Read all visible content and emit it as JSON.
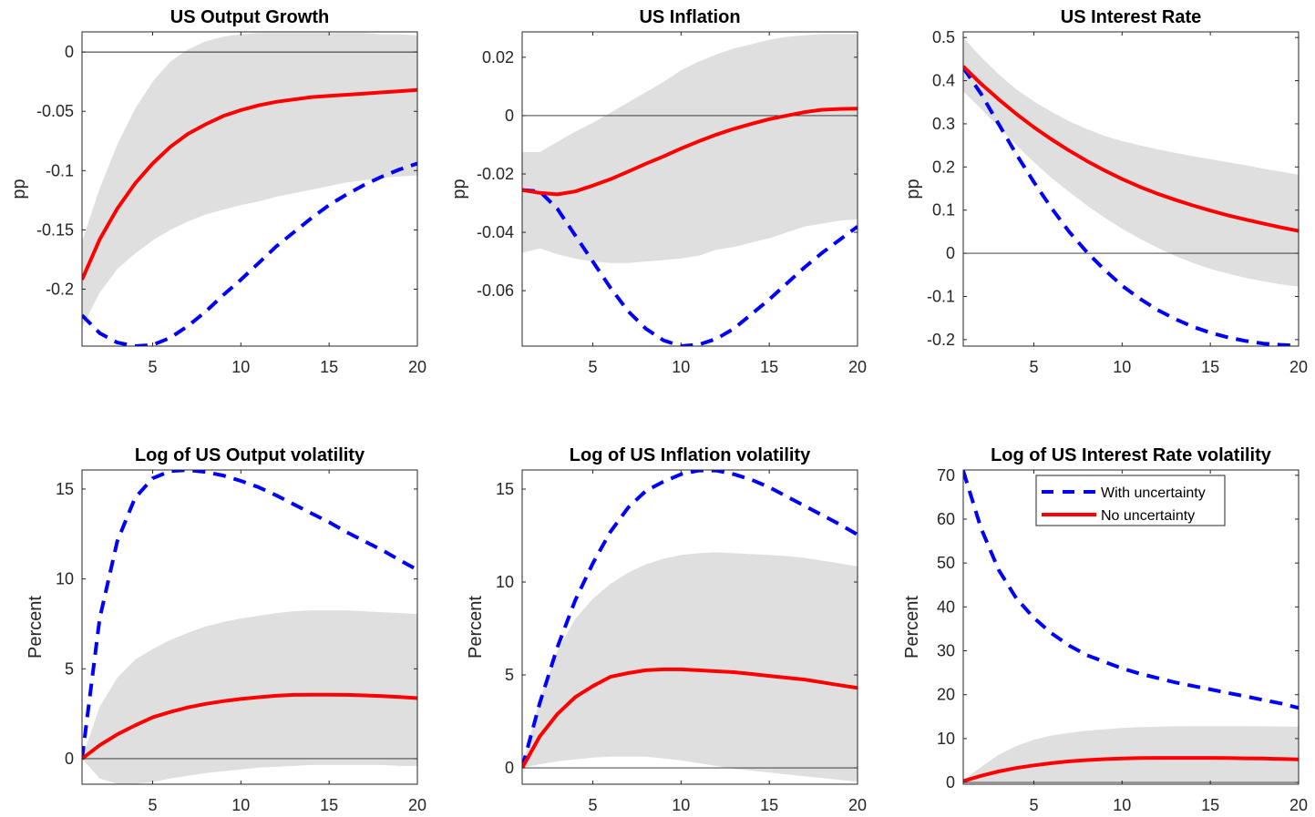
{
  "chart_data": [
    {
      "id": "us-output-growth",
      "type": "line",
      "title": "US Output Growth",
      "xlabel": "",
      "ylabel": "pp",
      "xlim": [
        1,
        20
      ],
      "ylim": [
        -0.248,
        0.017
      ],
      "xticks": [
        5,
        10,
        15,
        20
      ],
      "xtick_labels": [
        "5",
        "10",
        "15",
        "20"
      ],
      "yticks": [
        -0.2,
        -0.15,
        -0.1,
        -0.05,
        0
      ],
      "ytick_labels": [
        "-0.2",
        "-0.15",
        "-0.1",
        "-0.05",
        "0"
      ],
      "zero_line": true,
      "x": [
        1,
        2,
        3,
        4,
        5,
        6,
        7,
        8,
        9,
        10,
        11,
        12,
        13,
        14,
        15,
        16,
        17,
        18,
        19,
        20
      ],
      "band": {
        "name": "Confidence band",
        "lower": [
          -0.232,
          -0.203,
          -0.183,
          -0.17,
          -0.159,
          -0.15,
          -0.143,
          -0.137,
          -0.133,
          -0.129,
          -0.126,
          -0.122,
          -0.119,
          -0.116,
          -0.113,
          -0.11,
          -0.108,
          -0.106,
          -0.105,
          -0.104
        ],
        "upper": [
          -0.16,
          -0.115,
          -0.078,
          -0.048,
          -0.025,
          -0.008,
          0.002,
          0.009,
          0.013,
          0.015,
          0.016,
          0.016,
          0.016,
          0.016,
          0.016,
          0.016,
          0.016,
          0.015,
          0.015,
          0.014
        ]
      },
      "series": [
        {
          "name": "With uncertainty",
          "style": "dashed",
          "values": [
            -0.222,
            -0.237,
            -0.245,
            -0.248,
            -0.247,
            -0.241,
            -0.231,
            -0.219,
            -0.205,
            -0.192,
            -0.178,
            -0.164,
            -0.152,
            -0.14,
            -0.129,
            -0.12,
            -0.112,
            -0.105,
            -0.099,
            -0.094
          ]
        },
        {
          "name": "No uncertainty",
          "style": "solid",
          "values": [
            -0.192,
            -0.158,
            -0.132,
            -0.111,
            -0.094,
            -0.08,
            -0.069,
            -0.061,
            -0.054,
            -0.049,
            -0.045,
            -0.042,
            -0.04,
            -0.038,
            -0.037,
            -0.036,
            -0.035,
            -0.034,
            -0.033,
            -0.032
          ]
        }
      ]
    },
    {
      "id": "us-inflation",
      "type": "line",
      "title": "US Inflation",
      "xlabel": "",
      "ylabel": "pp",
      "xlim": [
        1,
        20
      ],
      "ylim": [
        -0.079,
        0.0287
      ],
      "xticks": [
        5,
        10,
        15,
        20
      ],
      "xtick_labels": [
        "5",
        "10",
        "15",
        "20"
      ],
      "yticks": [
        -0.06,
        -0.04,
        -0.02,
        0,
        0.02
      ],
      "ytick_labels": [
        "-0.06",
        "-0.04",
        "-0.02",
        "0",
        "0.02"
      ],
      "zero_line": true,
      "x": [
        1,
        2,
        3,
        4,
        5,
        6,
        7,
        8,
        9,
        10,
        11,
        12,
        13,
        14,
        15,
        16,
        17,
        18,
        19,
        20
      ],
      "band": {
        "name": "Confidence band",
        "lower": [
          -0.047,
          -0.0455,
          -0.0475,
          -0.049,
          -0.05,
          -0.0505,
          -0.0505,
          -0.05,
          -0.0495,
          -0.049,
          -0.048,
          -0.046,
          -0.045,
          -0.0435,
          -0.042,
          -0.04,
          -0.038,
          -0.037,
          -0.036,
          -0.0355
        ],
        "upper": [
          -0.0125,
          -0.0125,
          -0.009,
          -0.0055,
          -0.0025,
          0.001,
          0.0045,
          0.008,
          0.0115,
          0.0155,
          0.0185,
          0.021,
          0.023,
          0.0245,
          0.026,
          0.027,
          0.0275,
          0.028,
          0.028,
          0.028
        ]
      },
      "series": [
        {
          "name": "With uncertainty",
          "style": "dashed",
          "values": [
            -0.0255,
            -0.026,
            -0.032,
            -0.041,
            -0.05,
            -0.059,
            -0.067,
            -0.073,
            -0.077,
            -0.079,
            -0.0785,
            -0.0765,
            -0.073,
            -0.068,
            -0.063,
            -0.0575,
            -0.052,
            -0.047,
            -0.0425,
            -0.038
          ]
        },
        {
          "name": "No uncertainty",
          "style": "solid",
          "values": [
            -0.0255,
            -0.0265,
            -0.027,
            -0.026,
            -0.024,
            -0.0218,
            -0.0192,
            -0.0165,
            -0.014,
            -0.0113,
            -0.0088,
            -0.0065,
            -0.0045,
            -0.0028,
            -0.0012,
            0.0,
            0.0012,
            0.002,
            0.0023,
            0.0024
          ]
        }
      ]
    },
    {
      "id": "us-interest-rate",
      "type": "line",
      "title": "US Interest Rate",
      "xlabel": "",
      "ylabel": "pp",
      "xlim": [
        1,
        20
      ],
      "ylim": [
        -0.215,
        0.513
      ],
      "xticks": [
        5,
        10,
        15,
        20
      ],
      "xtick_labels": [
        "5",
        "10",
        "15",
        "20"
      ],
      "yticks": [
        -0.2,
        -0.1,
        0,
        0.1,
        0.2,
        0.3,
        0.4,
        0.5
      ],
      "ytick_labels": [
        "-0.2",
        "-0.1",
        "0",
        "0.1",
        "0.2",
        "0.3",
        "0.4",
        "0.5"
      ],
      "zero_line": true,
      "x": [
        1,
        2,
        3,
        4,
        5,
        6,
        7,
        8,
        9,
        10,
        11,
        12,
        13,
        14,
        15,
        16,
        17,
        18,
        19,
        20
      ],
      "band": {
        "name": "Confidence band",
        "lower": [
          0.375,
          0.335,
          0.293,
          0.251,
          0.211,
          0.175,
          0.142,
          0.111,
          0.083,
          0.057,
          0.034,
          0.013,
          -0.006,
          -0.022,
          -0.036,
          -0.047,
          -0.057,
          -0.065,
          -0.072,
          -0.077
        ],
        "upper": [
          0.5,
          0.455,
          0.415,
          0.38,
          0.352,
          0.328,
          0.306,
          0.288,
          0.272,
          0.26,
          0.25,
          0.241,
          0.233,
          0.225,
          0.218,
          0.211,
          0.204,
          0.196,
          0.189,
          0.182
        ]
      },
      "series": [
        {
          "name": "With uncertainty",
          "style": "dashed",
          "values": [
            0.43,
            0.37,
            0.3,
            0.23,
            0.165,
            0.105,
            0.05,
            0.003,
            -0.038,
            -0.075,
            -0.105,
            -0.131,
            -0.152,
            -0.17,
            -0.184,
            -0.195,
            -0.203,
            -0.209,
            -0.212,
            -0.214
          ]
        },
        {
          "name": "No uncertainty",
          "style": "solid",
          "values": [
            0.433,
            0.393,
            0.357,
            0.323,
            0.292,
            0.264,
            0.238,
            0.214,
            0.192,
            0.172,
            0.154,
            0.138,
            0.124,
            0.111,
            0.099,
            0.088,
            0.078,
            0.069,
            0.06,
            0.052
          ]
        }
      ]
    },
    {
      "id": "log-us-output-volatility",
      "type": "line",
      "title": "Log of US Output volatility",
      "xlabel": "",
      "ylabel": "Percent",
      "xlim": [
        1,
        20
      ],
      "ylim": [
        -1.42,
        16.06
      ],
      "xticks": [
        5,
        10,
        15,
        20
      ],
      "xtick_labels": [
        "5",
        "10",
        "15",
        "20"
      ],
      "yticks": [
        0,
        5,
        10,
        15
      ],
      "ytick_labels": [
        "0",
        "5",
        "10",
        "15"
      ],
      "zero_line": true,
      "x": [
        1,
        2,
        3,
        4,
        5,
        6,
        7,
        8,
        9,
        10,
        11,
        12,
        13,
        14,
        15,
        16,
        17,
        18,
        19,
        20
      ],
      "band": {
        "name": "Confidence band",
        "lower": [
          0.0,
          -1.1,
          -1.4,
          -1.4,
          -1.3,
          -1.1,
          -0.95,
          -0.8,
          -0.7,
          -0.6,
          -0.5,
          -0.45,
          -0.4,
          -0.35,
          -0.35,
          -0.35,
          -0.35,
          -0.35,
          -0.4,
          -0.4
        ],
        "upper": [
          0.0,
          2.9,
          4.5,
          5.5,
          6.1,
          6.6,
          7.0,
          7.35,
          7.6,
          7.8,
          7.95,
          8.1,
          8.2,
          8.25,
          8.25,
          8.25,
          8.2,
          8.15,
          8.1,
          8.05
        ]
      },
      "series": [
        {
          "name": "With uncertainty",
          "style": "dashed",
          "values": [
            0.0,
            7.8,
            12.1,
            14.5,
            15.6,
            16.0,
            16.06,
            15.95,
            15.75,
            15.45,
            15.1,
            14.65,
            14.15,
            13.65,
            13.15,
            12.6,
            12.1,
            11.6,
            11.05,
            10.5
          ]
        },
        {
          "name": "No uncertainty",
          "style": "solid",
          "values": [
            0.0,
            0.75,
            1.35,
            1.85,
            2.3,
            2.6,
            2.85,
            3.05,
            3.2,
            3.32,
            3.42,
            3.5,
            3.55,
            3.56,
            3.56,
            3.55,
            3.52,
            3.48,
            3.43,
            3.37
          ]
        }
      ]
    },
    {
      "id": "log-us-inflation-volatility",
      "type": "line",
      "title": "Log of US Inflation volatility",
      "xlabel": "",
      "ylabel": "Percent",
      "xlim": [
        1,
        20
      ],
      "ylim": [
        -0.88,
        16.03
      ],
      "xticks": [
        5,
        10,
        15,
        20
      ],
      "xtick_labels": [
        "5",
        "10",
        "15",
        "20"
      ],
      "yticks": [
        0,
        5,
        10,
        15
      ],
      "ytick_labels": [
        "0",
        "5",
        "10",
        "15"
      ],
      "zero_line": true,
      "x": [
        1,
        2,
        3,
        4,
        5,
        6,
        7,
        8,
        9,
        10,
        11,
        12,
        13,
        14,
        15,
        16,
        17,
        18,
        19,
        20
      ],
      "band": {
        "name": "Confidence band",
        "lower": [
          0.0,
          0.2,
          0.35,
          0.45,
          0.55,
          0.6,
          0.6,
          0.6,
          0.5,
          0.4,
          0.25,
          0.1,
          -0.05,
          -0.15,
          -0.25,
          -0.35,
          -0.45,
          -0.55,
          -0.65,
          -0.75
        ],
        "upper": [
          0.0,
          3.7,
          6.3,
          8.0,
          9.1,
          9.9,
          10.5,
          10.95,
          11.25,
          11.45,
          11.55,
          11.6,
          11.55,
          11.5,
          11.45,
          11.4,
          11.3,
          11.15,
          11.0,
          10.85
        ]
      },
      "series": [
        {
          "name": "With uncertainty",
          "style": "dashed",
          "values": [
            0.0,
            3.5,
            6.5,
            9.0,
            11.0,
            12.7,
            14.0,
            14.9,
            15.4,
            15.8,
            16.0,
            16.0,
            15.8,
            15.5,
            15.1,
            14.6,
            14.1,
            13.6,
            13.1,
            12.55
          ]
        },
        {
          "name": "No uncertainty",
          "style": "solid",
          "values": [
            0.0,
            1.7,
            2.9,
            3.8,
            4.4,
            4.9,
            5.1,
            5.25,
            5.3,
            5.3,
            5.25,
            5.2,
            5.15,
            5.05,
            4.95,
            4.85,
            4.75,
            4.6,
            4.45,
            4.3
          ]
        }
      ]
    },
    {
      "id": "log-us-interest-rate-volatility",
      "type": "line",
      "title": "Log of US Interest Rate volatility",
      "xlabel": "",
      "ylabel": "Percent",
      "xlim": [
        1,
        20
      ],
      "ylim": [
        -0.4,
        71.2
      ],
      "xticks": [
        5,
        10,
        15,
        20
      ],
      "xtick_labels": [
        "5",
        "10",
        "15",
        "20"
      ],
      "yticks": [
        0,
        10,
        20,
        30,
        40,
        50,
        60,
        70
      ],
      "ytick_labels": [
        "0",
        "10",
        "20",
        "30",
        "40",
        "50",
        "60",
        "70"
      ],
      "zero_line": true,
      "legend": {
        "placement": "top-center",
        "entries": [
          {
            "label": "With uncertainty",
            "style": "dashed",
            "color": "#0000ff"
          },
          {
            "label": "No uncertainty",
            "style": "solid",
            "color": "#ff0000"
          }
        ]
      },
      "x": [
        1,
        2,
        3,
        4,
        5,
        6,
        7,
        8,
        9,
        10,
        11,
        12,
        13,
        14,
        15,
        16,
        17,
        18,
        19,
        20
      ],
      "band": {
        "name": "Confidence band",
        "lower": [
          0.0,
          0.0,
          0.0,
          0.0,
          0.0,
          0.0,
          0.0,
          0.0,
          0.0,
          0.0,
          0.0,
          0.0,
          0.0,
          0.0,
          0.0,
          0.0,
          0.0,
          0.0,
          0.0,
          0.0
        ],
        "upper": [
          0.5,
          3.5,
          6.3,
          8.3,
          9.7,
          10.7,
          11.3,
          11.8,
          12.1,
          12.4,
          12.6,
          12.7,
          12.8,
          12.85,
          12.85,
          12.85,
          12.85,
          12.8,
          12.75,
          12.7
        ]
      },
      "series": [
        {
          "name": "With uncertainty",
          "style": "dashed",
          "values": [
            71.0,
            58.0,
            48.5,
            42.0,
            37.5,
            34.0,
            31.2,
            29.0,
            27.5,
            26.0,
            24.8,
            23.8,
            22.8,
            22.0,
            21.2,
            20.4,
            19.6,
            18.8,
            18.0,
            17.0
          ]
        },
        {
          "name": "No uncertainty",
          "style": "solid",
          "values": [
            0.3,
            1.5,
            2.5,
            3.3,
            3.9,
            4.4,
            4.8,
            5.1,
            5.3,
            5.45,
            5.55,
            5.6,
            5.6,
            5.6,
            5.6,
            5.55,
            5.5,
            5.45,
            5.35,
            5.25
          ]
        }
      ]
    }
  ],
  "colors": {
    "with_uncertainty": "#0000ff",
    "no_uncertainty": "#ff0000",
    "band": "#dfdfdf",
    "axis": "#262626",
    "zero_line": "#262626"
  }
}
